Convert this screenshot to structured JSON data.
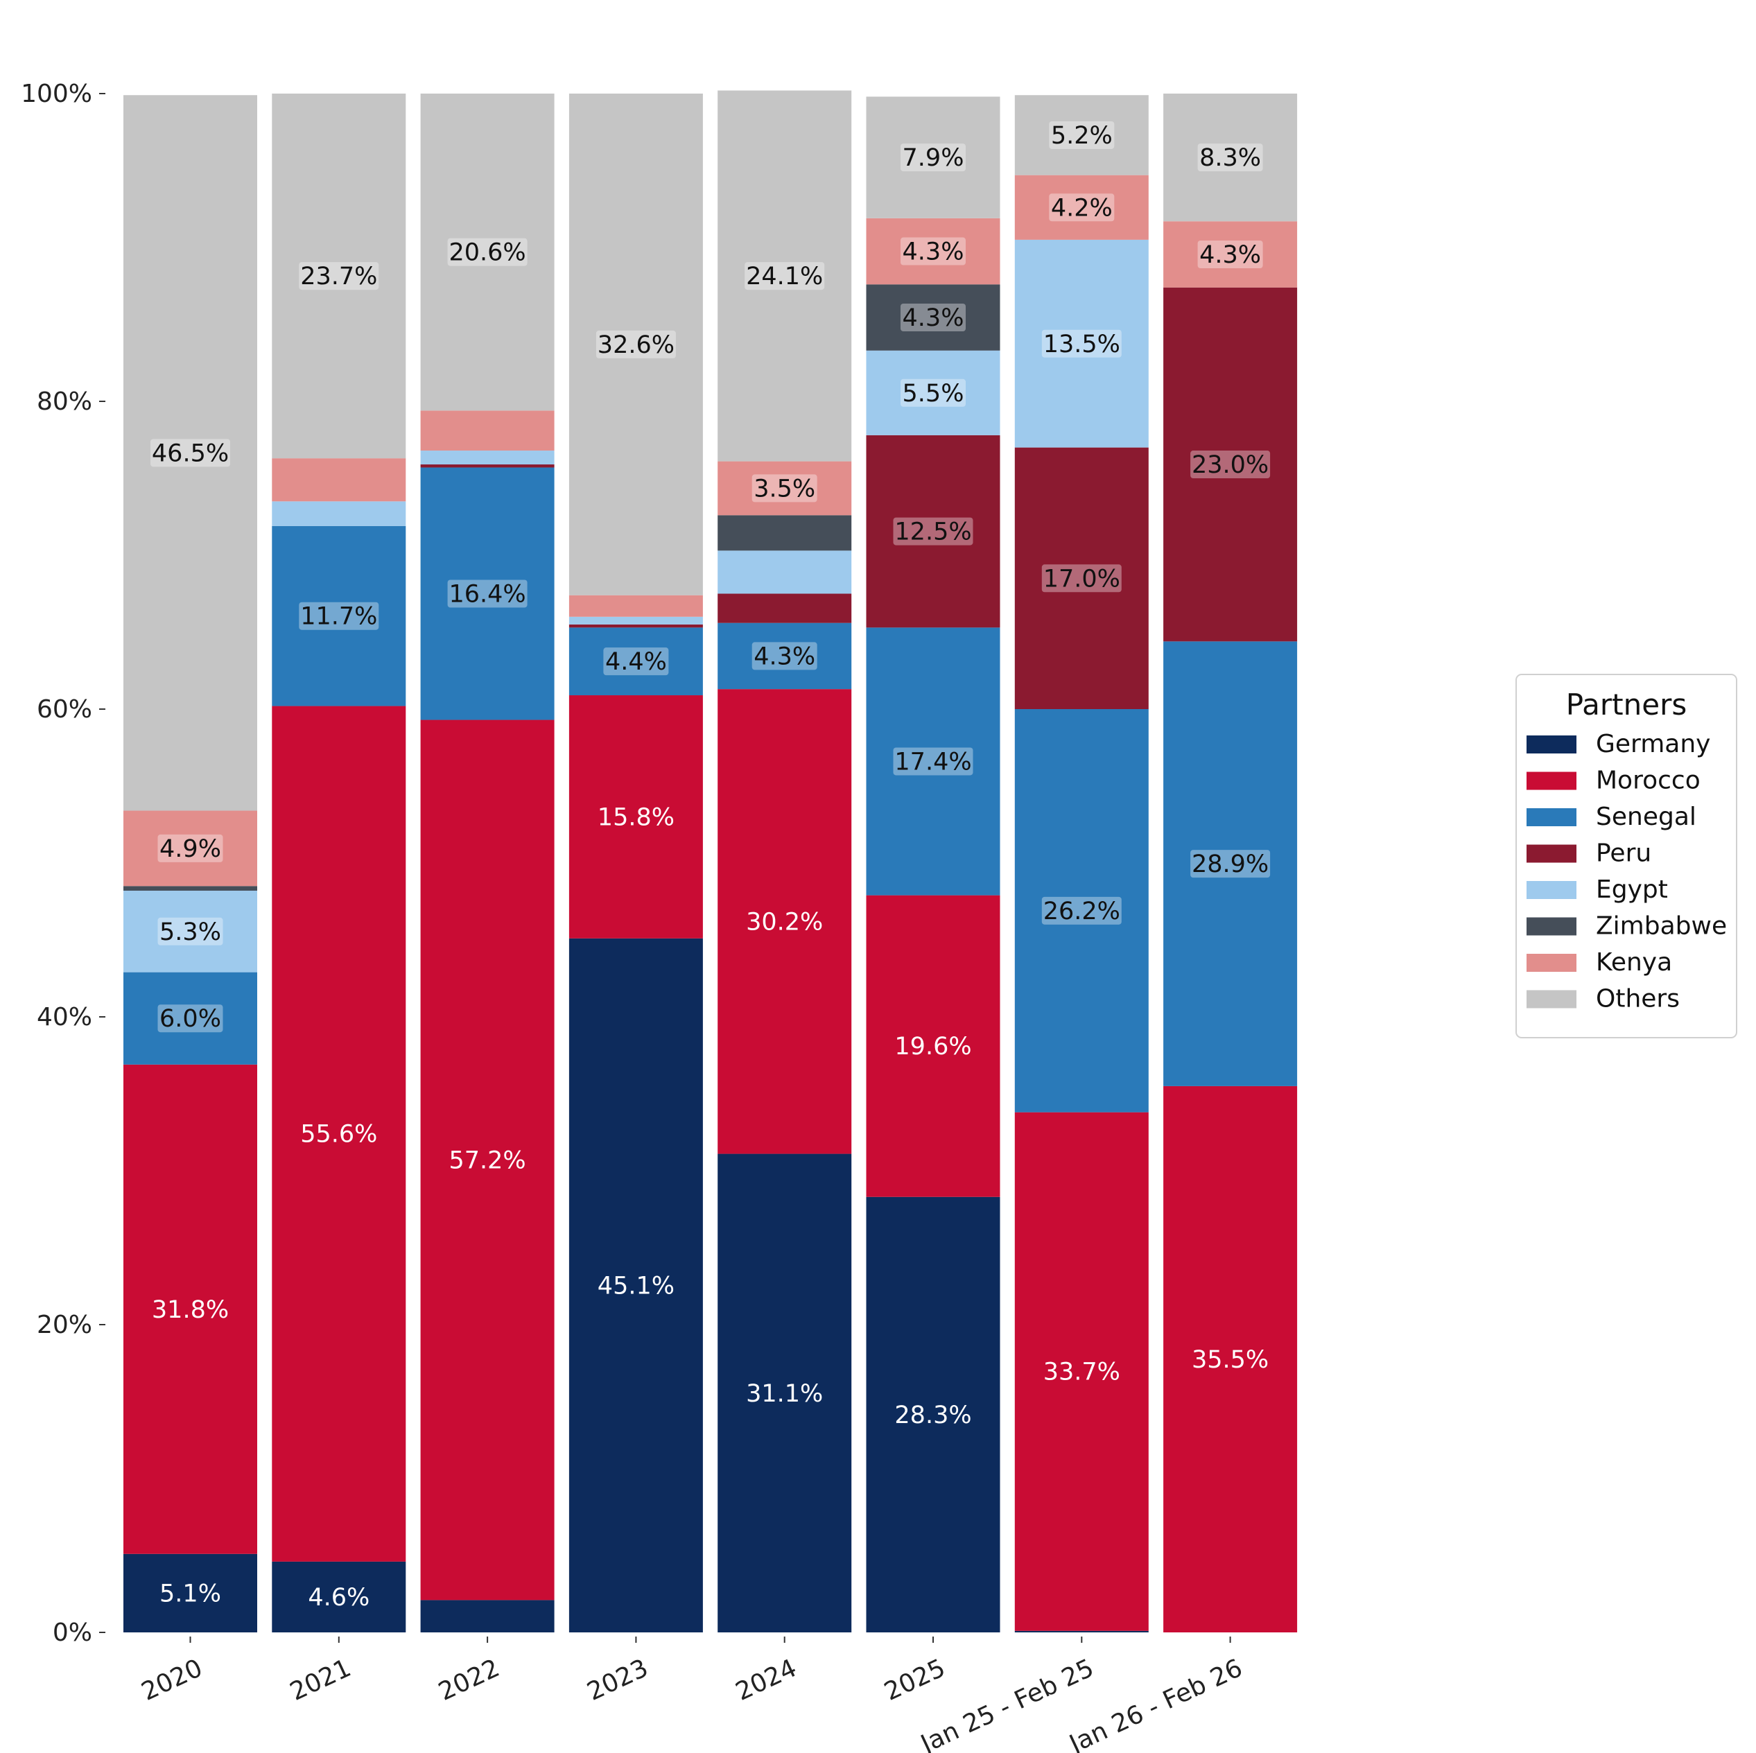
{
  "chart_data": {
    "type": "bar",
    "stacked": true,
    "categories": [
      "2020",
      "2021",
      "2022",
      "2023",
      "2024",
      "2025",
      "Jan 25 - Feb 25",
      "Jan 26 - Feb 26"
    ],
    "ylim": [
      0,
      100
    ],
    "y_ticks": [
      "0%",
      "20%",
      "40%",
      "60%",
      "80%",
      "100%"
    ],
    "legend": {
      "title": "Partners",
      "placement": "right"
    },
    "series": [
      {
        "name": "Germany",
        "color": "#0d2b5c",
        "values": [
          5.1,
          4.6,
          2.1,
          45.1,
          31.1,
          28.3,
          0.1,
          0
        ],
        "labels": [
          "5.1%",
          "4.6%",
          "",
          "45.1%",
          "31.1%",
          "28.3%",
          "",
          ""
        ]
      },
      {
        "name": "Morocco",
        "color": "#c90c34",
        "values": [
          31.8,
          55.6,
          57.2,
          15.8,
          30.2,
          19.6,
          33.7,
          35.5
        ],
        "labels": [
          "31.8%",
          "55.6%",
          "57.2%",
          "15.8%",
          "30.2%",
          "19.6%",
          "33.7%",
          "35.5%"
        ]
      },
      {
        "name": "Senegal",
        "color": "#2a7ab9",
        "values": [
          6.0,
          11.7,
          16.4,
          4.4,
          4.3,
          17.4,
          26.2,
          28.9
        ],
        "labels": [
          "6.0%",
          "11.7%",
          "16.4%",
          "4.4%",
          "4.3%",
          "17.4%",
          "26.2%",
          "28.9%"
        ]
      },
      {
        "name": "Peru",
        "color": "#8b1a30",
        "values": [
          0,
          0,
          0.2,
          0.2,
          1.9,
          12.5,
          17.0,
          23.0
        ],
        "labels": [
          "",
          "",
          "",
          "",
          "",
          "12.5%",
          "17.0%",
          "23.0%"
        ]
      },
      {
        "name": "Egypt",
        "color": "#9ecaed",
        "values": [
          5.3,
          1.6,
          0.9,
          0.5,
          2.8,
          5.5,
          13.5,
          0
        ],
        "labels": [
          "5.3%",
          "",
          "",
          "",
          "",
          "5.5%",
          "13.5%",
          ""
        ]
      },
      {
        "name": "Zimbabwe",
        "color": "#454e59",
        "values": [
          0.3,
          0,
          0,
          0,
          2.3,
          4.3,
          0,
          0
        ],
        "labels": [
          "",
          "",
          "",
          "",
          "",
          "4.3%",
          "",
          ""
        ]
      },
      {
        "name": "Kenya",
        "color": "#e28e8c",
        "values": [
          4.9,
          2.8,
          2.6,
          1.4,
          3.5,
          4.3,
          4.2,
          4.3
        ],
        "labels": [
          "4.9%",
          "",
          "",
          "",
          "3.5%",
          "4.3%",
          "4.2%",
          "4.3%"
        ]
      },
      {
        "name": "Others",
        "color": "#c5c5c5",
        "values": [
          46.5,
          23.7,
          20.6,
          32.6,
          24.1,
          7.9,
          5.2,
          8.3
        ],
        "labels": [
          "46.5%",
          "23.7%",
          "20.6%",
          "32.6%",
          "24.1%",
          "7.9%",
          "5.2%",
          "8.3%"
        ]
      }
    ]
  }
}
